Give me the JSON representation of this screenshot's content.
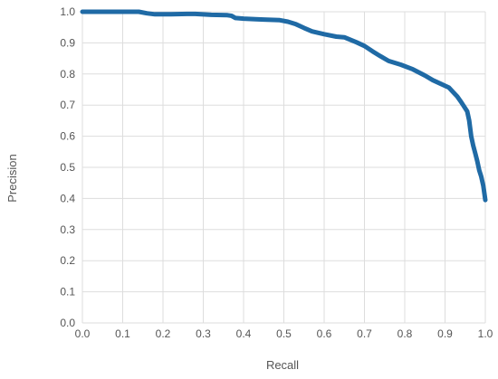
{
  "chart_data": {
    "type": "line",
    "title": "",
    "xlabel": "Recall",
    "ylabel": "Precision",
    "xlim": [
      0,
      1
    ],
    "ylim": [
      0,
      1
    ],
    "grid": true,
    "x_ticks": [
      "0.0",
      "0.1",
      "0.2",
      "0.3",
      "0.4",
      "0.5",
      "0.6",
      "0.7",
      "0.8",
      "0.9",
      "1.0"
    ],
    "y_ticks": [
      "0.0",
      "0.1",
      "0.2",
      "0.3",
      "0.4",
      "0.5",
      "0.6",
      "0.7",
      "0.8",
      "0.9",
      "1.0"
    ],
    "colors": {
      "line": "#1f6aa5",
      "grid": "#dddddd",
      "tick_text": "#555555"
    },
    "series": [
      {
        "x": [
          0.0,
          0.05,
          0.1,
          0.14,
          0.16,
          0.18,
          0.22,
          0.26,
          0.28,
          0.32,
          0.36,
          0.37,
          0.38,
          0.4,
          0.43,
          0.45,
          0.49,
          0.51,
          0.53,
          0.55,
          0.57,
          0.6,
          0.63,
          0.65,
          0.68,
          0.7,
          0.72,
          0.74,
          0.76,
          0.79,
          0.82,
          0.85,
          0.87,
          0.89,
          0.91,
          0.92,
          0.93,
          0.94,
          0.945,
          0.955,
          0.96,
          0.965,
          0.97,
          0.975,
          0.98,
          0.985,
          0.99,
          0.995,
          1.0
        ],
        "y": [
          1.0,
          1.0,
          1.0,
          1.0,
          0.995,
          0.992,
          0.992,
          0.993,
          0.993,
          0.99,
          0.989,
          0.987,
          0.98,
          0.978,
          0.976,
          0.975,
          0.973,
          0.968,
          0.96,
          0.948,
          0.937,
          0.928,
          0.92,
          0.918,
          0.902,
          0.89,
          0.873,
          0.857,
          0.842,
          0.83,
          0.815,
          0.795,
          0.78,
          0.768,
          0.756,
          0.742,
          0.728,
          0.71,
          0.7,
          0.68,
          0.65,
          0.6,
          0.57,
          0.545,
          0.52,
          0.49,
          0.47,
          0.44,
          0.395
        ]
      }
    ]
  }
}
